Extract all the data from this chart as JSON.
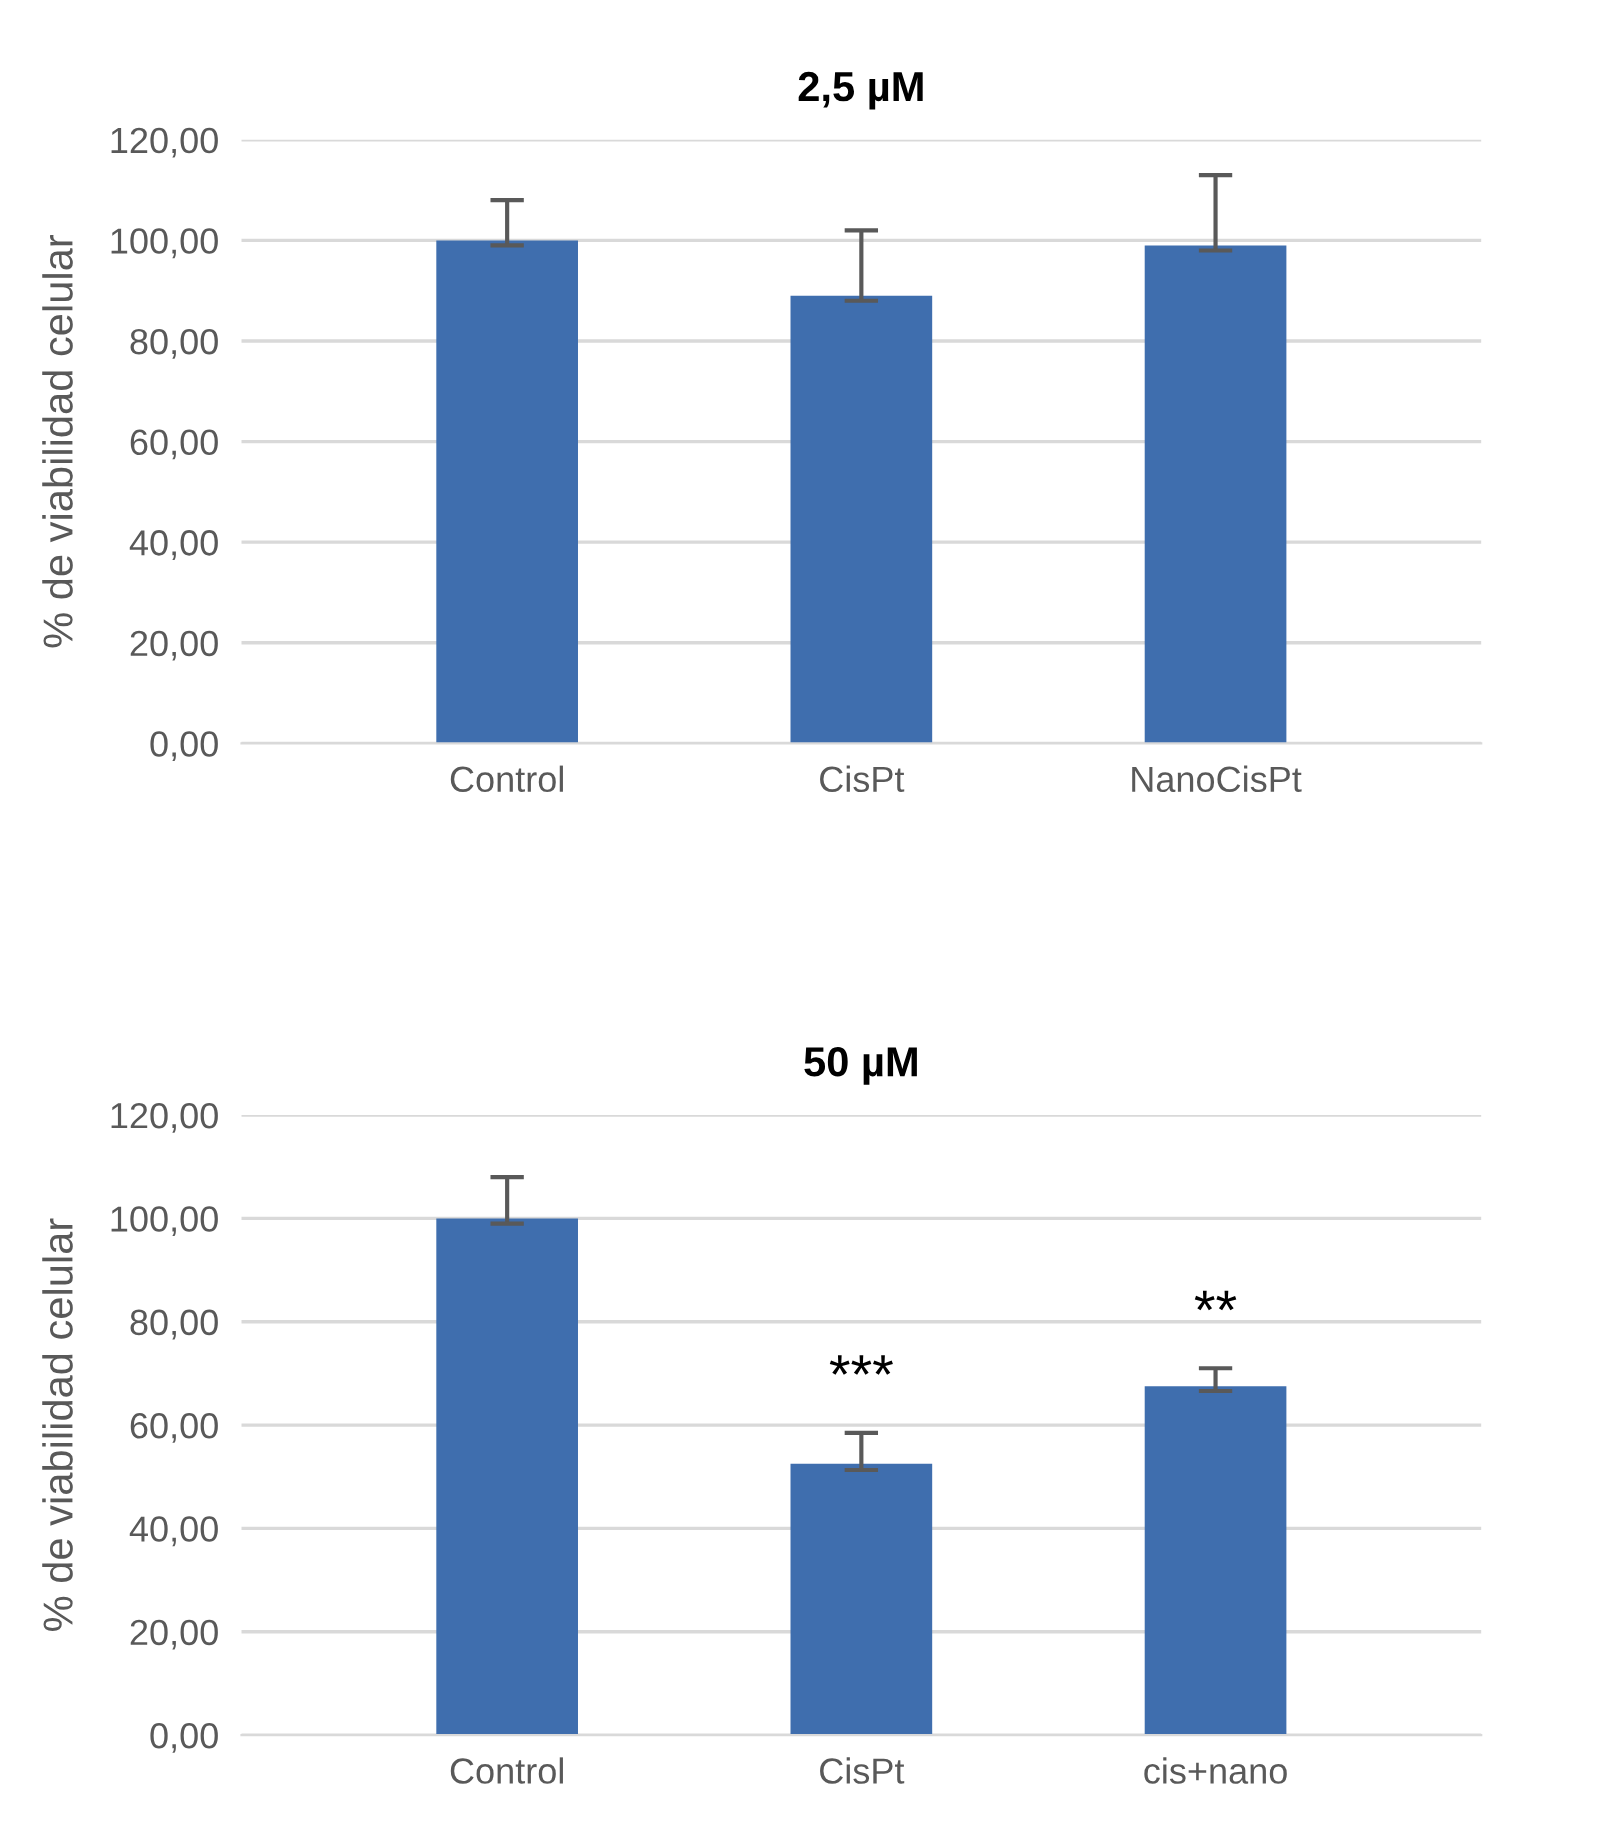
{
  "chart_data": [
    {
      "type": "bar",
      "title": "2,5 µM",
      "ylabel": "% de viabilidad celular",
      "categories": [
        "Control",
        "CisPt",
        "NanoCisPt"
      ],
      "series": [
        {
          "color": "#3f6eae",
          "values": [
            100,
            89,
            99
          ],
          "errors": [
            [
              99,
              108
            ],
            [
              88,
              102
            ],
            [
              98,
              113
            ]
          ]
        }
      ],
      "ylim": [
        0,
        120
      ],
      "yticks": [
        {
          "value": 0,
          "label": "0,00"
        },
        {
          "value": 20,
          "label": "20,00"
        },
        {
          "value": 40,
          "label": "40,00"
        },
        {
          "value": 60,
          "label": "60,00"
        },
        {
          "value": 80,
          "label": "80,00"
        },
        {
          "value": 100,
          "label": "100,00"
        },
        {
          "value": 120,
          "label": "120,00"
        }
      ],
      "grid": "y",
      "legend": false
    },
    {
      "type": "bar",
      "title": "50 µM",
      "ylabel": "% de viabilidad celular",
      "categories": [
        "Control",
        "CisPt",
        "cis+nano"
      ],
      "series": [
        {
          "color": "#3f6eae",
          "values": [
            100,
            52.5,
            67.5
          ],
          "errors": [
            [
              99,
              108
            ],
            [
              51.3,
              58.5
            ],
            [
              66.6,
              71
            ]
          ]
        }
      ],
      "ylim": [
        0,
        120
      ],
      "yticks": [
        {
          "value": 0,
          "label": "0,00"
        },
        {
          "value": 20,
          "label": "20,00"
        },
        {
          "value": 40,
          "label": "40,00"
        },
        {
          "value": 60,
          "label": "60,00"
        },
        {
          "value": 80,
          "label": "80,00"
        },
        {
          "value": 100,
          "label": "100,00"
        },
        {
          "value": 120,
          "label": "120,00"
        }
      ],
      "grid": "y",
      "legend": false,
      "annotations": [
        "***",
        "**"
      ]
    }
  ]
}
